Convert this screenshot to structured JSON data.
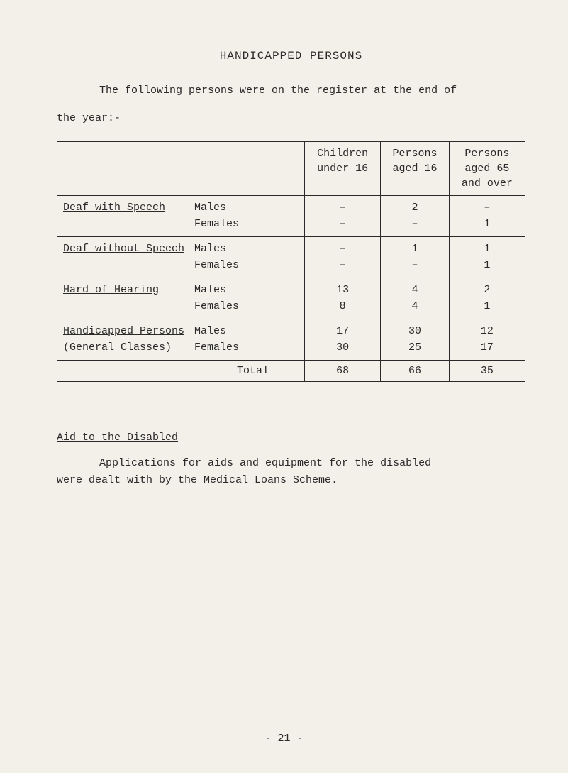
{
  "title": "HANDICAPPED PERSONS",
  "intro_line1": "The following persons were on the register at the end of",
  "intro_line2": "the year:-",
  "table": {
    "headers": {
      "blank": "",
      "col1_l1": "Children",
      "col1_l2": "under 16",
      "col2_l1": "Persons",
      "col2_l2": "aged 16",
      "col3_l1": "Persons",
      "col3_l2": "aged 65",
      "col3_l3": "and over"
    },
    "rows": [
      {
        "category": "Deaf with Speech",
        "sub1": "Males",
        "sub2": "Females",
        "c1a": "–",
        "c1b": "–",
        "c2a": "2",
        "c2b": "–",
        "c3a": "–",
        "c3b": "1"
      },
      {
        "category": "Deaf without Speech",
        "sub1": "Males",
        "sub2": "Females",
        "c1a": "–",
        "c1b": "–",
        "c2a": "1",
        "c2b": "–",
        "c3a": "1",
        "c3b": "1"
      },
      {
        "category": "Hard of Hearing",
        "sub1": "Males",
        "sub2": "Females",
        "c1a": "13",
        "c1b": "8",
        "c2a": "4",
        "c2b": "4",
        "c3a": "2",
        "c3b": "1"
      },
      {
        "category": "Handicapped Persons",
        "category2": "(General Classes)",
        "sub1": "Males",
        "sub2": "Females",
        "c1a": "17",
        "c1b": "30",
        "c2a": "30",
        "c2b": "25",
        "c3a": "12",
        "c3b": "17"
      }
    ],
    "total": {
      "label": "Total",
      "c1": "68",
      "c2": "66",
      "c3": "35"
    }
  },
  "section2": {
    "title": "Aid to the Disabled",
    "body_l1": "Applications for aids and equipment for the disabled",
    "body_l2": "were dealt with by the Medical Loans Scheme."
  },
  "page_number": "- 21 -"
}
